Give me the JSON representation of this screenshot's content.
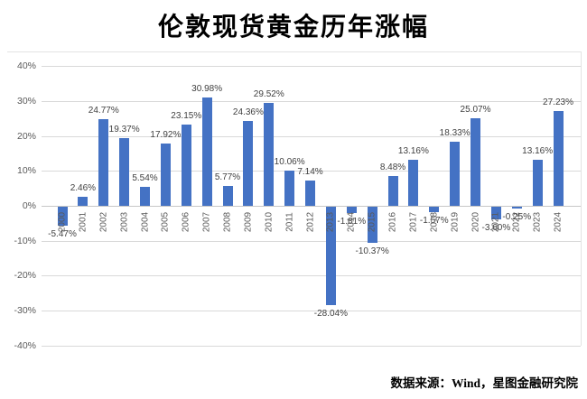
{
  "title": "伦敦现货黄金历年涨幅",
  "source": "数据来源：Wind，星图金融研究院",
  "chart_data": {
    "type": "bar",
    "title": "伦敦现货黄金历年涨幅",
    "categories": [
      "2000",
      "2001",
      "2002",
      "2003",
      "2004",
      "2005",
      "2006",
      "2007",
      "2008",
      "2009",
      "2010",
      "2011",
      "2012",
      "2013",
      "2014",
      "2015",
      "2016",
      "2017",
      "2018",
      "2019",
      "2020",
      "2021",
      "2022",
      "2023",
      "2024"
    ],
    "values": [
      -5.47,
      2.46,
      24.77,
      19.37,
      5.54,
      17.92,
      23.15,
      30.98,
      5.77,
      24.36,
      29.52,
      10.06,
      7.14,
      -28.04,
      -1.81,
      -10.37,
      8.48,
      13.16,
      -1.57,
      18.33,
      25.07,
      -3.6,
      -0.25,
      13.16,
      27.23
    ],
    "value_labels": [
      "-5.47%",
      "2.46%",
      "24.77%",
      "19.37%",
      "5.54%",
      "17.92%",
      "23.15%",
      "30.98%",
      "5.77%",
      "24.36%",
      "29.52%",
      "10.06%",
      "7.14%",
      "-28.04%",
      "-1.81%",
      "-10.37%",
      "8.48%",
      "13.16%",
      "-1.57%",
      "18.33%",
      "25.07%",
      "-3.60%",
      "-0.25%",
      "13.16%",
      "27.23%"
    ],
    "xlabel": "",
    "ylabel": "",
    "ylim": [
      -40,
      40
    ],
    "ytick_step": 10,
    "ytick_suffix": "%",
    "grid": true,
    "legend": "none",
    "bar_color": "#4472C4",
    "source": "数据来源：Wind，星图金融研究院"
  }
}
